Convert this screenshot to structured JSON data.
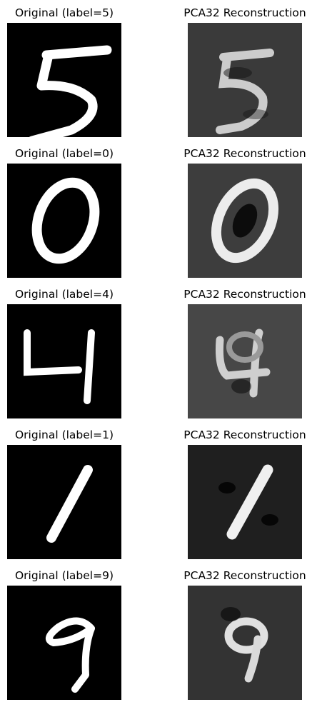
{
  "figure": {
    "rows": [
      {
        "original_title": "Original (label=5)",
        "reconstruction_title": "PCA32 Reconstruction",
        "label": 5
      },
      {
        "original_title": "Original (label=0)",
        "reconstruction_title": "PCA32 Reconstruction",
        "label": 0
      },
      {
        "original_title": "Original (label=4)",
        "reconstruction_title": "PCA32 Reconstruction",
        "label": 4
      },
      {
        "original_title": "Original (label=1)",
        "reconstruction_title": "PCA32 Reconstruction",
        "label": 1
      },
      {
        "original_title": "Original (label=9)",
        "reconstruction_title": "PCA32 Reconstruction",
        "label": 9
      }
    ]
  }
}
